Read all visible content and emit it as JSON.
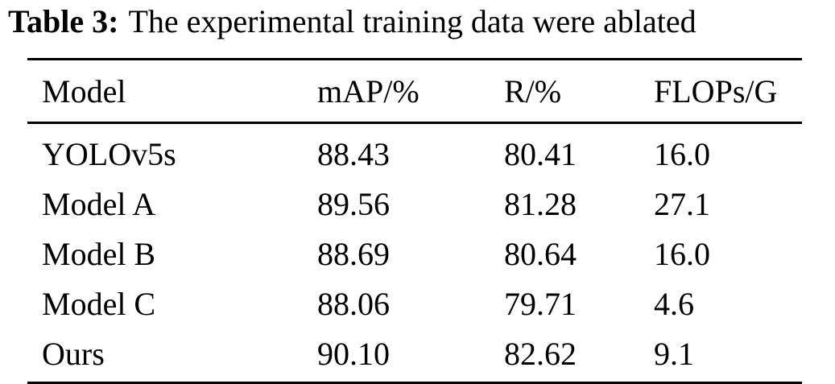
{
  "caption": {
    "label": "Table 3:",
    "text": "The experimental training data were ablated"
  },
  "table": {
    "headers": [
      "Model",
      "mAP/%",
      "R/%",
      "FLOPs/G"
    ],
    "rows": [
      [
        "YOLOv5s",
        "88.43",
        "80.41",
        "16.0"
      ],
      [
        "Model A",
        "89.56",
        "81.28",
        "27.1"
      ],
      [
        "Model B",
        "88.69",
        "80.64",
        "16.0"
      ],
      [
        "Model C",
        "88.06",
        "79.71",
        "4.6"
      ],
      [
        "Ours",
        "90.10",
        "82.62",
        "9.1"
      ]
    ]
  },
  "chart_data": {
    "type": "table",
    "title": "The experimental training data were ablated",
    "columns": [
      "Model",
      "mAP/%",
      "R/%",
      "FLOPs/G"
    ],
    "rows": [
      {
        "Model": "YOLOv5s",
        "mAP/%": 88.43,
        "R/%": 80.41,
        "FLOPs/G": 16.0
      },
      {
        "Model": "Model A",
        "mAP/%": 89.56,
        "R/%": 81.28,
        "FLOPs/G": 27.1
      },
      {
        "Model": "Model B",
        "mAP/%": 88.69,
        "R/%": 80.64,
        "FLOPs/G": 16.0
      },
      {
        "Model": "Model C",
        "mAP/%": 88.06,
        "R/%": 79.71,
        "FLOPs/G": 4.6
      },
      {
        "Model": "Ours",
        "mAP/%": 90.1,
        "R/%": 82.62,
        "FLOPs/G": 9.1
      }
    ]
  }
}
